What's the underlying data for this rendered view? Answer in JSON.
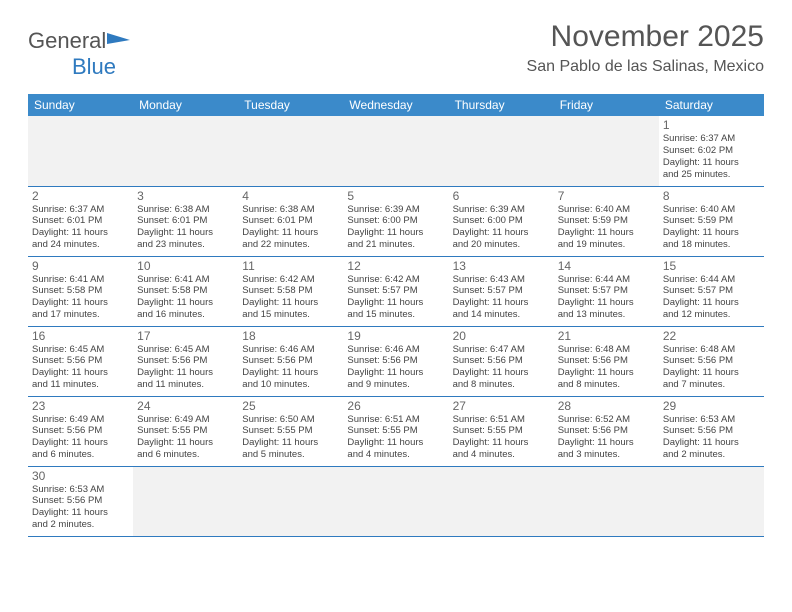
{
  "logo": {
    "text_a": "General",
    "text_b": "Blue"
  },
  "header": {
    "title": "November 2025",
    "location": "San Pablo de las Salinas, Mexico"
  },
  "theme": {
    "header_bg": "#3b8aca",
    "header_text": "#ffffff",
    "row_sep": "#2f7abf",
    "empty_bg": "#f2f2f2",
    "text_color": "#444444",
    "title_color": "#555555"
  },
  "weekdays": [
    "Sunday",
    "Monday",
    "Tuesday",
    "Wednesday",
    "Thursday",
    "Friday",
    "Saturday"
  ],
  "weeks": [
    [
      null,
      null,
      null,
      null,
      null,
      null,
      {
        "n": "1",
        "sr": "Sunrise: 6:37 AM",
        "ss": "Sunset: 6:02 PM",
        "dl1": "Daylight: 11 hours",
        "dl2": "and 25 minutes."
      }
    ],
    [
      {
        "n": "2",
        "sr": "Sunrise: 6:37 AM",
        "ss": "Sunset: 6:01 PM",
        "dl1": "Daylight: 11 hours",
        "dl2": "and 24 minutes."
      },
      {
        "n": "3",
        "sr": "Sunrise: 6:38 AM",
        "ss": "Sunset: 6:01 PM",
        "dl1": "Daylight: 11 hours",
        "dl2": "and 23 minutes."
      },
      {
        "n": "4",
        "sr": "Sunrise: 6:38 AM",
        "ss": "Sunset: 6:01 PM",
        "dl1": "Daylight: 11 hours",
        "dl2": "and 22 minutes."
      },
      {
        "n": "5",
        "sr": "Sunrise: 6:39 AM",
        "ss": "Sunset: 6:00 PM",
        "dl1": "Daylight: 11 hours",
        "dl2": "and 21 minutes."
      },
      {
        "n": "6",
        "sr": "Sunrise: 6:39 AM",
        "ss": "Sunset: 6:00 PM",
        "dl1": "Daylight: 11 hours",
        "dl2": "and 20 minutes."
      },
      {
        "n": "7",
        "sr": "Sunrise: 6:40 AM",
        "ss": "Sunset: 5:59 PM",
        "dl1": "Daylight: 11 hours",
        "dl2": "and 19 minutes."
      },
      {
        "n": "8",
        "sr": "Sunrise: 6:40 AM",
        "ss": "Sunset: 5:59 PM",
        "dl1": "Daylight: 11 hours",
        "dl2": "and 18 minutes."
      }
    ],
    [
      {
        "n": "9",
        "sr": "Sunrise: 6:41 AM",
        "ss": "Sunset: 5:58 PM",
        "dl1": "Daylight: 11 hours",
        "dl2": "and 17 minutes."
      },
      {
        "n": "10",
        "sr": "Sunrise: 6:41 AM",
        "ss": "Sunset: 5:58 PM",
        "dl1": "Daylight: 11 hours",
        "dl2": "and 16 minutes."
      },
      {
        "n": "11",
        "sr": "Sunrise: 6:42 AM",
        "ss": "Sunset: 5:58 PM",
        "dl1": "Daylight: 11 hours",
        "dl2": "and 15 minutes."
      },
      {
        "n": "12",
        "sr": "Sunrise: 6:42 AM",
        "ss": "Sunset: 5:57 PM",
        "dl1": "Daylight: 11 hours",
        "dl2": "and 15 minutes."
      },
      {
        "n": "13",
        "sr": "Sunrise: 6:43 AM",
        "ss": "Sunset: 5:57 PM",
        "dl1": "Daylight: 11 hours",
        "dl2": "and 14 minutes."
      },
      {
        "n": "14",
        "sr": "Sunrise: 6:44 AM",
        "ss": "Sunset: 5:57 PM",
        "dl1": "Daylight: 11 hours",
        "dl2": "and 13 minutes."
      },
      {
        "n": "15",
        "sr": "Sunrise: 6:44 AM",
        "ss": "Sunset: 5:57 PM",
        "dl1": "Daylight: 11 hours",
        "dl2": "and 12 minutes."
      }
    ],
    [
      {
        "n": "16",
        "sr": "Sunrise: 6:45 AM",
        "ss": "Sunset: 5:56 PM",
        "dl1": "Daylight: 11 hours",
        "dl2": "and 11 minutes."
      },
      {
        "n": "17",
        "sr": "Sunrise: 6:45 AM",
        "ss": "Sunset: 5:56 PM",
        "dl1": "Daylight: 11 hours",
        "dl2": "and 11 minutes."
      },
      {
        "n": "18",
        "sr": "Sunrise: 6:46 AM",
        "ss": "Sunset: 5:56 PM",
        "dl1": "Daylight: 11 hours",
        "dl2": "and 10 minutes."
      },
      {
        "n": "19",
        "sr": "Sunrise: 6:46 AM",
        "ss": "Sunset: 5:56 PM",
        "dl1": "Daylight: 11 hours",
        "dl2": "and 9 minutes."
      },
      {
        "n": "20",
        "sr": "Sunrise: 6:47 AM",
        "ss": "Sunset: 5:56 PM",
        "dl1": "Daylight: 11 hours",
        "dl2": "and 8 minutes."
      },
      {
        "n": "21",
        "sr": "Sunrise: 6:48 AM",
        "ss": "Sunset: 5:56 PM",
        "dl1": "Daylight: 11 hours",
        "dl2": "and 8 minutes."
      },
      {
        "n": "22",
        "sr": "Sunrise: 6:48 AM",
        "ss": "Sunset: 5:56 PM",
        "dl1": "Daylight: 11 hours",
        "dl2": "and 7 minutes."
      }
    ],
    [
      {
        "n": "23",
        "sr": "Sunrise: 6:49 AM",
        "ss": "Sunset: 5:56 PM",
        "dl1": "Daylight: 11 hours",
        "dl2": "and 6 minutes."
      },
      {
        "n": "24",
        "sr": "Sunrise: 6:49 AM",
        "ss": "Sunset: 5:55 PM",
        "dl1": "Daylight: 11 hours",
        "dl2": "and 6 minutes."
      },
      {
        "n": "25",
        "sr": "Sunrise: 6:50 AM",
        "ss": "Sunset: 5:55 PM",
        "dl1": "Daylight: 11 hours",
        "dl2": "and 5 minutes."
      },
      {
        "n": "26",
        "sr": "Sunrise: 6:51 AM",
        "ss": "Sunset: 5:55 PM",
        "dl1": "Daylight: 11 hours",
        "dl2": "and 4 minutes."
      },
      {
        "n": "27",
        "sr": "Sunrise: 6:51 AM",
        "ss": "Sunset: 5:55 PM",
        "dl1": "Daylight: 11 hours",
        "dl2": "and 4 minutes."
      },
      {
        "n": "28",
        "sr": "Sunrise: 6:52 AM",
        "ss": "Sunset: 5:56 PM",
        "dl1": "Daylight: 11 hours",
        "dl2": "and 3 minutes."
      },
      {
        "n": "29",
        "sr": "Sunrise: 6:53 AM",
        "ss": "Sunset: 5:56 PM",
        "dl1": "Daylight: 11 hours",
        "dl2": "and 2 minutes."
      }
    ],
    [
      {
        "n": "30",
        "sr": "Sunrise: 6:53 AM",
        "ss": "Sunset: 5:56 PM",
        "dl1": "Daylight: 11 hours",
        "dl2": "and 2 minutes."
      },
      null,
      null,
      null,
      null,
      null,
      null
    ]
  ]
}
